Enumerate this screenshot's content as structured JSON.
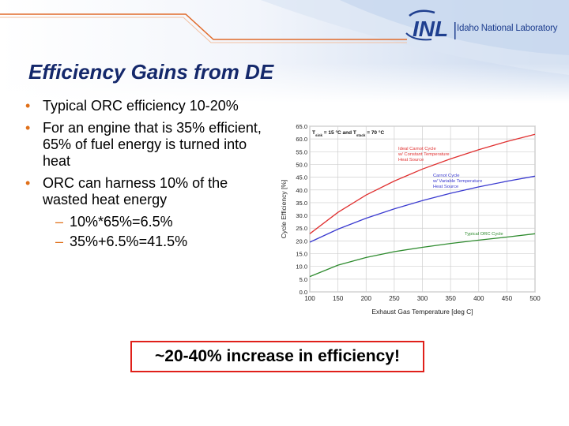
{
  "header": {
    "logo_mark": "INL",
    "organization": "Idaho National Laboratory",
    "colors": {
      "navy": "#14286b",
      "orange": "#e0701a",
      "red": "#e0201a"
    }
  },
  "slide": {
    "title": "Efficiency Gains from DE",
    "bullets": [
      "Typical ORC efficiency 10-20%",
      "For an engine that is 35% efficient, 65% of fuel energy is turned into heat",
      "ORC can harness 10% of the wasted heat energy"
    ],
    "sub_bullets": [
      "10%*65%=6.5%",
      "35%+6.5%=41.5%"
    ],
    "callout": "~20-40% increase in efficiency!"
  },
  "chart_data": {
    "type": "line",
    "xlabel": "Exhaust Gas Temperature [deg C]",
    "ylabel": "Cycle Efficiency [%]",
    "condition_prefix": "T",
    "condition_sub1": "sink",
    "condition_mid": " = 15 °C and T",
    "condition_sub2": "stack",
    "condition_suffix": " = 70 °C",
    "xlim": [
      100,
      500
    ],
    "ylim": [
      0,
      65
    ],
    "xticks": [
      100,
      150,
      200,
      250,
      300,
      350,
      400,
      450,
      500
    ],
    "yticks": [
      0.0,
      5.0,
      10.0,
      15.0,
      20.0,
      25.0,
      30.0,
      35.0,
      40.0,
      45.0,
      50.0,
      55.0,
      60.0,
      65.0
    ],
    "grid": true,
    "x": [
      100,
      150,
      200,
      250,
      300,
      350,
      400,
      450,
      500
    ],
    "series": [
      {
        "name": "Ideal Carnot Cycle w/ Constant Temperature Heat Source",
        "label_lines": [
          "Ideal Carnot Cycle",
          "w/ Constant Temperature",
          "Heat Source"
        ],
        "color": "#e03030",
        "values": [
          22.8,
          31.2,
          38.0,
          43.5,
          48.2,
          52.2,
          55.8,
          59.0,
          61.8
        ]
      },
      {
        "name": "Carnot Cycle w/ Variable Temperature Heat Source",
        "label_lines": [
          "Carnot Cycle",
          "w/ Variable Temperature",
          "Heat Source"
        ],
        "color": "#3a3ad0",
        "values": [
          19.5,
          24.6,
          28.9,
          32.6,
          35.8,
          38.7,
          41.2,
          43.4,
          45.4
        ]
      },
      {
        "name": "Typical ORC Cycle",
        "label_lines": [
          "Typical ORC Cycle"
        ],
        "color": "#2e8b2e",
        "values": [
          6.0,
          10.5,
          13.5,
          15.8,
          17.5,
          19.0,
          20.3,
          21.5,
          22.8
        ]
      }
    ]
  }
}
